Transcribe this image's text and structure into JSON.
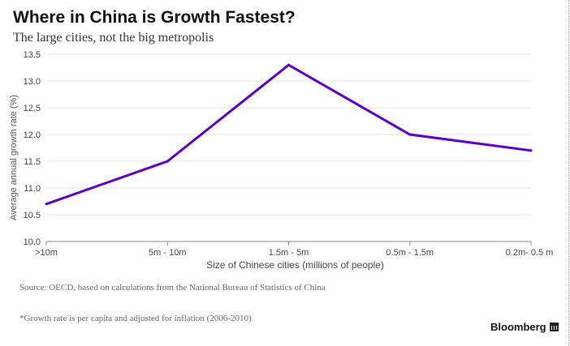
{
  "chart_data": {
    "type": "line",
    "title": "Where in China is Growth Fastest?",
    "subtitle": "The large cities, not the big metropolis",
    "xlabel": "Size of Chinese cities (millions of people)",
    "ylabel": "Average annual growth rate (%)",
    "categories": [
      ">10m",
      "5m - 10m",
      "1.5m - 5m",
      "0.5m - 1.5m",
      "0.2m- 0.5 m"
    ],
    "series": [
      {
        "name": "Average annual growth rate",
        "values": [
          10.7,
          11.5,
          13.3,
          12.0,
          11.7
        ],
        "color": "#5a00c8"
      }
    ],
    "ylim": [
      10.0,
      13.5
    ],
    "yticks": [
      "10.0",
      "10.5",
      "11.0",
      "11.5",
      "12.0",
      "12.5",
      "13.0",
      "13.5"
    ],
    "grid": true
  },
  "footer": {
    "source": "Source: OECD, based on calculations from the National Bureau of Statistics of China",
    "footnote": "*Growth rate is per capita and adjusted for inflation (2006-2010)",
    "brand": "Bloomberg"
  },
  "colors": {
    "line": "#5a00c8",
    "grid": "#e6e6e6",
    "axis": "#888888"
  }
}
